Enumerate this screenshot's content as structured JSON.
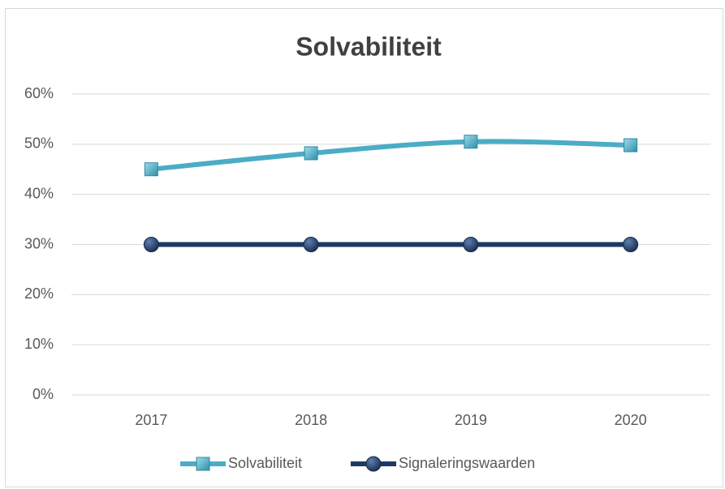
{
  "chart_data": {
    "type": "line",
    "title": "Solvabiliteit",
    "categories": [
      "2017",
      "2018",
      "2019",
      "2020"
    ],
    "series": [
      {
        "name": "Solvabiliteit",
        "color": "#4bacc6",
        "marker": "square",
        "values": [
          45,
          48.2,
          50.5,
          49.8
        ]
      },
      {
        "name": "Signaleringswaarden",
        "color": "#1f3a60",
        "marker": "circle",
        "values": [
          30,
          30,
          30,
          30
        ]
      }
    ],
    "ylim": [
      0,
      60
    ],
    "yticks": [
      {
        "value": 0,
        "label": "0%"
      },
      {
        "value": 10,
        "label": "10%"
      },
      {
        "value": 20,
        "label": "20%"
      },
      {
        "value": 30,
        "label": "30%"
      },
      {
        "value": 40,
        "label": "40%"
      },
      {
        "value": 50,
        "label": "50%"
      },
      {
        "value": 60,
        "label": "60%"
      }
    ],
    "grid": true,
    "smooth": true,
    "legend": "bottom"
  }
}
